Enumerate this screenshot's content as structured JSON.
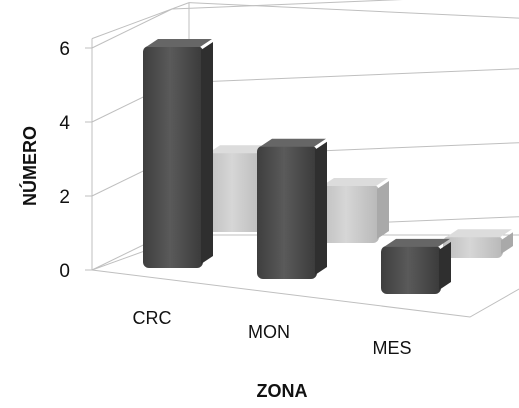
{
  "chart_data": {
    "type": "bar",
    "title": "",
    "xlabel": "ZONA",
    "ylabel": "NÚMERO",
    "categories": [
      "CRC",
      "MON",
      "MES"
    ],
    "series": [
      {
        "values": [
          6,
          3.6,
          1.3
        ],
        "color": "#4d4d4d"
      },
      {
        "values": [
          2.2,
          1.6,
          0.6
        ],
        "color": "#c9c9c9"
      }
    ],
    "yticks": [
      "0",
      "2",
      "4",
      "6"
    ],
    "ylim": [
      0,
      7
    ],
    "grid": true,
    "legend": "none",
    "style": "3d-clustered-column"
  }
}
